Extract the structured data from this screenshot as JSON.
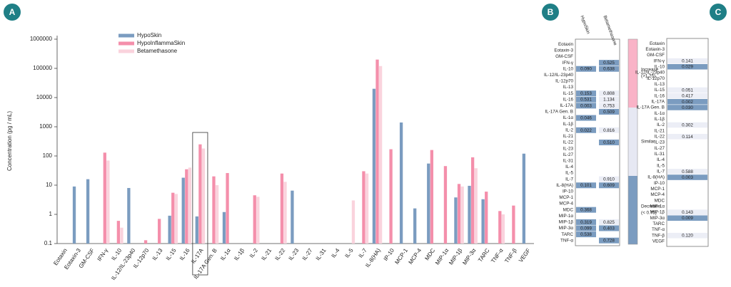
{
  "chart_data": [
    {
      "type": "bar",
      "panel_label": "A",
      "y_label": "Concentration (pg / mL)",
      "log_scale": true,
      "ylim": [
        0.1,
        1000000
      ],
      "yticks": [
        0.1,
        1,
        10,
        100,
        1000,
        10000,
        100000,
        1000000
      ],
      "categories": [
        "Eotaxin",
        "Eotaxin-3",
        "GM-CSF",
        "IFN-γ",
        "IL-10",
        "IL-12/IL-23p40",
        "IL-12p70",
        "IL-13",
        "IL-15",
        "IL-16",
        "IL-17A",
        "IL-17A Gen. B",
        "IL-1α",
        "IL-1β",
        "IL-2",
        "IL-21",
        "IL-22",
        "IL-23",
        "IL-27",
        "IL-31",
        "IL-4",
        "IL-5",
        "IL-7",
        "IL-8(HA)",
        "IP-10",
        "MCP-1",
        "MCP-4",
        "MDC",
        "MIP-1α",
        "MIP-1β",
        "MIP-3α",
        "TARC",
        "TNF-α",
        "TNF-β",
        "VEGF"
      ],
      "series": [
        {
          "name": "HypoSkin",
          "color": "#7b9cc0",
          "values": [
            null,
            9,
            16,
            null,
            null,
            8,
            null,
            null,
            0.9,
            18,
            0.85,
            null,
            1.2,
            null,
            null,
            null,
            null,
            6.5,
            null,
            null,
            null,
            null,
            null,
            20000,
            null,
            1400,
            1.6,
            55,
            null,
            3.8,
            9.5,
            3.3,
            null,
            null,
            120
          ]
        },
        {
          "name": "HypoInflammaSkin",
          "color": "#f48fab",
          "values": [
            null,
            null,
            null,
            130,
            0.6,
            null,
            0.13,
            0.7,
            5.5,
            35,
            250,
            20,
            26,
            null,
            4.5,
            null,
            25,
            null,
            null,
            null,
            null,
            null,
            30,
            200000,
            170,
            null,
            null,
            160,
            45,
            11,
            90,
            6,
            1.3,
            2,
            null
          ]
        },
        {
          "name": "Betamethasone",
          "color": "#fad3dd",
          "values": [
            null,
            null,
            null,
            70,
            0.35,
            null,
            null,
            null,
            5,
            40,
            180,
            10,
            null,
            null,
            4,
            null,
            13,
            null,
            null,
            null,
            null,
            3,
            25,
            120000,
            null,
            null,
            null,
            null,
            null,
            9,
            38,
            null,
            1,
            null,
            null
          ]
        }
      ]
    },
    {
      "type": "heatmap",
      "panel_label": "B",
      "rows": [
        "Eotaxin",
        "Eotaxin-3",
        "GM-CSF",
        "IFN-γ",
        "IL-10",
        "IL-12/IL-23p40",
        "IL-12p70",
        "IL-13",
        "IL-15",
        "IL-16",
        "IL-17A",
        "IL-17A Gen. B",
        "IL-1α",
        "IL-1β",
        "IL-2",
        "IL-21",
        "IL-22",
        "IL-23",
        "IL-27",
        "IL-31",
        "IL-4",
        "IL-5",
        "IL-7",
        "IL-8(HA)",
        "IP-10",
        "MCP-1",
        "MCP-4",
        "MDC",
        "MIP-1α",
        "MIP-1β",
        "MIP-3α",
        "TARC",
        "TNF-α"
      ],
      "series": [
        {
          "name": "HypoSkin",
          "values": [
            null,
            null,
            null,
            null,
            0.09,
            null,
            null,
            null,
            0.153,
            0.531,
            0.003,
            null,
            0.046,
            null,
            0.022,
            null,
            null,
            null,
            null,
            null,
            null,
            null,
            null,
            0.101,
            null,
            null,
            null,
            0.368,
            null,
            0.319,
            0.099,
            0.538,
            null
          ],
          "value_labels": [
            null,
            null,
            null,
            null,
            "0.090",
            null,
            null,
            null,
            "0.153",
            "0.531",
            "0.003",
            null,
            "0.046",
            null,
            "0.022",
            null,
            null,
            null,
            null,
            null,
            null,
            null,
            null,
            "0.101",
            null,
            null,
            null,
            "0.368",
            null,
            "0.319",
            "0.099",
            "0.538",
            null
          ],
          "colors": [
            null,
            null,
            null,
            null,
            "#7b9cc0",
            null,
            null,
            null,
            "#7b9cc0",
            "#7b9cc0",
            "#7b9cc0",
            null,
            "#7b9cc0",
            null,
            "#7b9cc0",
            null,
            null,
            null,
            null,
            null,
            null,
            null,
            null,
            "#7b9cc0",
            null,
            null,
            null,
            "#7b9cc0",
            null,
            "#7b9cc0",
            "#7b9cc0",
            "#7b9cc0",
            null
          ]
        },
        {
          "name": "Betamethasone",
          "values": [
            null,
            null,
            null,
            0.525,
            0.638,
            null,
            null,
            null,
            0.808,
            1.134,
            0.753,
            0.509,
            null,
            null,
            0.816,
            null,
            0.51,
            null,
            null,
            null,
            null,
            null,
            0.91,
            0.609,
            null,
            null,
            null,
            null,
            null,
            0.825,
            0.403,
            null,
            0.728
          ],
          "value_labels": [
            null,
            null,
            null,
            "0.525",
            "0.638",
            null,
            null,
            null,
            "0.808",
            "1.134",
            "0.753",
            "0.509",
            null,
            null,
            "0.816",
            null,
            "0.510",
            null,
            null,
            null,
            null,
            null,
            "0.910",
            "0.609",
            null,
            null,
            null,
            null,
            null,
            "0.825",
            "0.403",
            null,
            "0.728"
          ],
          "colors": [
            null,
            null,
            null,
            "#7b9cc0",
            "#7b9cc0",
            null,
            null,
            null,
            "#eceef6",
            "#eceef6",
            "#eceef6",
            "#7b9cc0",
            null,
            null,
            "#eceef6",
            null,
            "#7b9cc0",
            null,
            null,
            null,
            null,
            null,
            "#eceef6",
            "#7b9cc0",
            null,
            null,
            null,
            null,
            null,
            "#eceef6",
            "#7b9cc0",
            null,
            "#7b9cc0"
          ]
        }
      ],
      "legend_items": [
        {
          "name": "Increase",
          "note": "(>1.25)",
          "color": "#f9b3c7"
        },
        {
          "name": "Similar",
          "color": "#e6e8f3"
        },
        {
          "name": "Decrease",
          "note": "(< 0.75)",
          "color": "#7b9cc0"
        }
      ]
    },
    {
      "type": "heatmap",
      "panel_label": "C",
      "rows": [
        "Eotaxin",
        "Eotaxin-3",
        "GM-CSF",
        "IFN-γ",
        "IL-10",
        "IL-12/IL-23p40",
        "IL-12p70",
        "IL-13",
        "IL-15",
        "IL-16",
        "IL-17A",
        "IL-17A Gen. B",
        "IL-1α",
        "IL-1β",
        "IL-2",
        "IL-21",
        "IL-22",
        "IL-23",
        "IL-27",
        "IL-31",
        "IL-4",
        "IL-5",
        "IL-7",
        "IL-8(HA)",
        "IP-10",
        "MCP-1",
        "MCP-4",
        "MDC",
        "MIP-1α",
        "MIP-1β",
        "MIP-3α",
        "TARC",
        "TNF-α",
        "TNF-β",
        "VEGF"
      ],
      "series": [
        {
          "values": [
            null,
            null,
            null,
            0.141,
            0.029,
            null,
            null,
            null,
            0.051,
            0.417,
            0.002,
            0.03,
            null,
            null,
            0.302,
            null,
            0.114,
            null,
            null,
            null,
            null,
            null,
            0.588,
            0.003,
            null,
            null,
            null,
            null,
            null,
            0.143,
            0.009,
            null,
            null,
            0.12,
            null
          ],
          "value_labels": [
            null,
            null,
            null,
            "0.141",
            "0.029",
            null,
            null,
            null,
            "0.051",
            "0.417",
            "0.002",
            "0.030",
            null,
            null,
            "0.302",
            null,
            "0.114",
            null,
            null,
            null,
            null,
            null,
            "0.588",
            "0.003",
            null,
            null,
            null,
            null,
            null,
            "0.143",
            "0.009",
            null,
            null,
            "0.120",
            null
          ],
          "colors": [
            null,
            null,
            null,
            "#eceef6",
            "#7b9cc0",
            null,
            null,
            null,
            "#eceef6",
            "#eceef6",
            "#7b9cc0",
            "#7b9cc0",
            null,
            null,
            "#eceef6",
            null,
            "#eceef6",
            null,
            null,
            null,
            null,
            null,
            "#eceef6",
            "#7b9cc0",
            null,
            null,
            null,
            null,
            null,
            "#eceef6",
            "#7b9cc0",
            null,
            null,
            "#eceef6",
            null
          ]
        }
      ]
    }
  ]
}
